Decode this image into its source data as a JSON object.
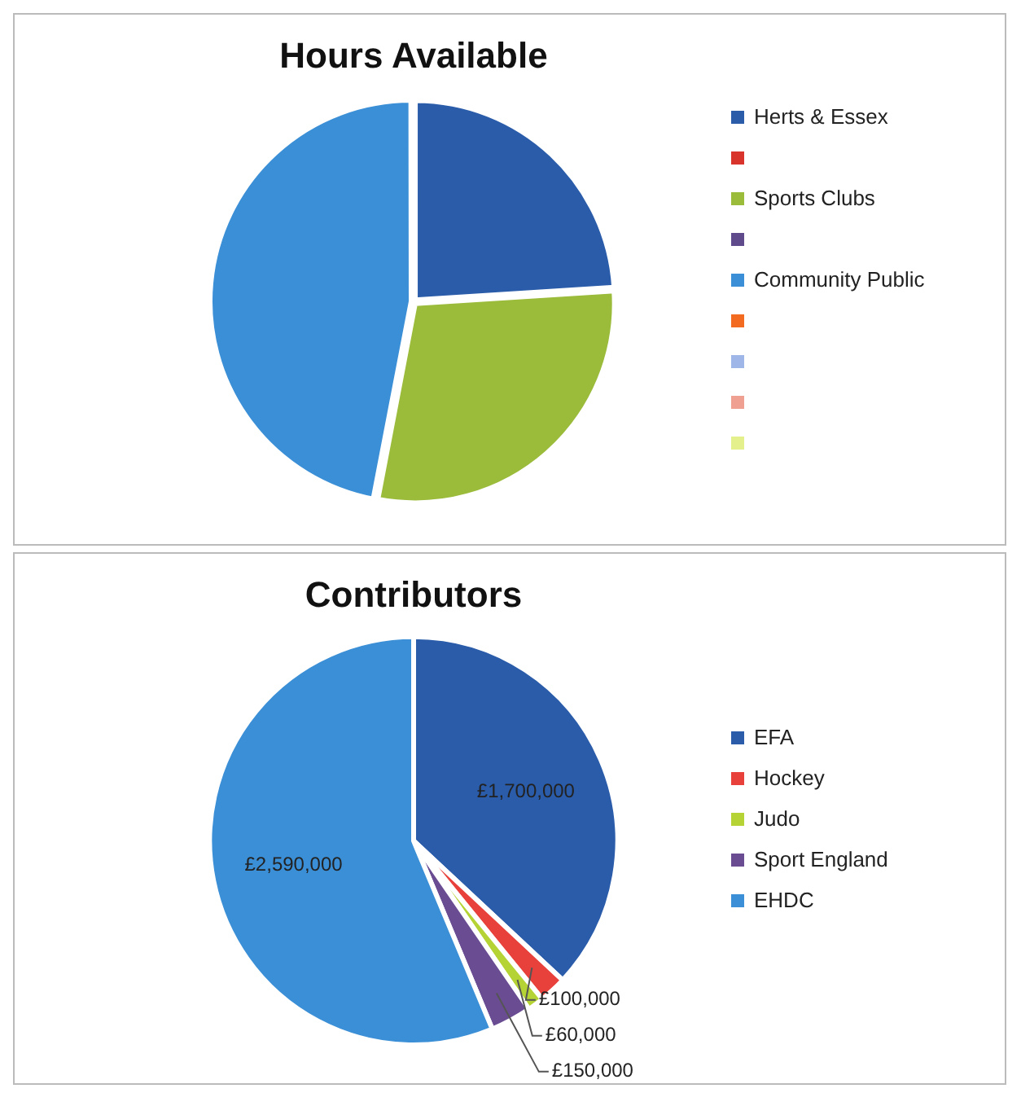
{
  "chart_data": [
    {
      "type": "pie",
      "title": "Hours Available",
      "categories": [
        "Herts & Essex",
        null,
        "Sports Clubs",
        null,
        "Community Public",
        null,
        null,
        null,
        null
      ],
      "values": [
        24,
        0,
        29,
        0,
        47,
        0,
        0,
        0,
        0
      ],
      "colors": [
        "#2a5caa",
        "#d9342b",
        "#9bbb3b",
        "#5f4a8b",
        "#3b8fd6",
        "#f26b21",
        "#9eb6e8",
        "#f0a090",
        "#e4f08c"
      ],
      "legend": "right"
    },
    {
      "type": "pie",
      "title": "Contributors",
      "categories": [
        "EFA",
        "Hockey",
        "Judo",
        "Sport England",
        "EHDC"
      ],
      "values": [
        1700000,
        100000,
        60000,
        150000,
        2590000
      ],
      "colors": [
        "#2a5caa",
        "#e8413c",
        "#b5d334",
        "#6a4c93",
        "#3b8fd6"
      ],
      "value_labels": [
        "£1,700,000",
        "£100,000",
        "£60,000",
        "£150,000",
        "£2,590,000"
      ],
      "legend": "right"
    }
  ]
}
